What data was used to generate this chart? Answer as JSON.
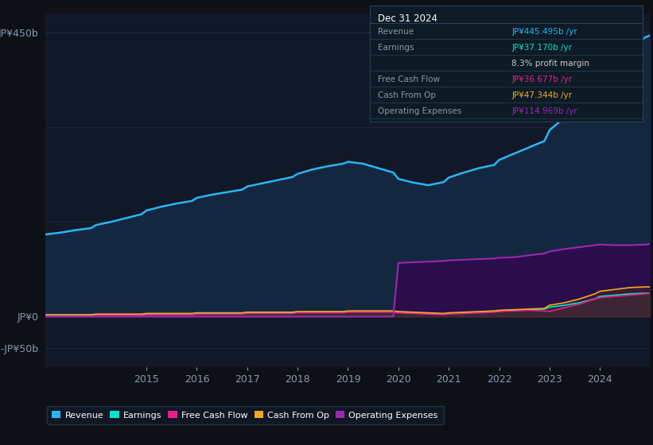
{
  "background_color": "#0d1117",
  "plot_bg_color": "#111827",
  "grid_color": "#1e2d3d",
  "years": [
    2013.0,
    2013.3,
    2013.6,
    2013.9,
    2014.0,
    2014.3,
    2014.6,
    2014.9,
    2015.0,
    2015.3,
    2015.6,
    2015.9,
    2016.0,
    2016.3,
    2016.6,
    2016.9,
    2017.0,
    2017.3,
    2017.6,
    2017.9,
    2018.0,
    2018.3,
    2018.6,
    2018.9,
    2019.0,
    2019.3,
    2019.6,
    2019.9,
    2020.0,
    2020.3,
    2020.6,
    2020.9,
    2021.0,
    2021.3,
    2021.6,
    2021.9,
    2022.0,
    2022.3,
    2022.6,
    2022.9,
    2023.0,
    2023.3,
    2023.6,
    2023.9,
    2024.0,
    2024.3,
    2024.6,
    2024.9,
    2024.99
  ],
  "revenue": [
    130,
    133,
    137,
    140,
    145,
    150,
    156,
    162,
    168,
    174,
    179,
    183,
    188,
    193,
    197,
    201,
    206,
    211,
    216,
    221,
    226,
    233,
    238,
    242,
    245,
    242,
    235,
    228,
    218,
    212,
    208,
    213,
    220,
    228,
    235,
    240,
    248,
    258,
    268,
    278,
    295,
    315,
    335,
    360,
    385,
    405,
    425,
    442,
    445
  ],
  "earnings": [
    2,
    2,
    2,
    2,
    3,
    3,
    3,
    3,
    4,
    4,
    4,
    4,
    5,
    5,
    5,
    5,
    6,
    6,
    6,
    6,
    7,
    7,
    7,
    7,
    8,
    8,
    8,
    8,
    7,
    6,
    5,
    4,
    5,
    6,
    7,
    8,
    9,
    10,
    11,
    12,
    15,
    18,
    22,
    28,
    32,
    34,
    36,
    37,
    37
  ],
  "free_cash_flow": [
    1,
    1,
    1,
    1,
    2,
    2,
    2,
    2,
    3,
    3,
    3,
    3,
    4,
    4,
    4,
    4,
    5,
    5,
    5,
    5,
    6,
    6,
    6,
    6,
    7,
    7,
    7,
    7,
    6,
    5,
    4,
    3,
    4,
    5,
    6,
    7,
    8,
    9,
    10,
    9,
    8,
    14,
    20,
    28,
    30,
    32,
    34,
    36,
    37
  ],
  "cash_from_op": [
    3,
    3,
    3,
    3,
    4,
    4,
    4,
    4,
    5,
    5,
    5,
    5,
    6,
    6,
    6,
    6,
    7,
    7,
    7,
    7,
    8,
    8,
    8,
    8,
    9,
    9,
    9,
    9,
    8,
    7,
    6,
    5,
    6,
    7,
    8,
    9,
    10,
    11,
    12,
    13,
    18,
    22,
    28,
    36,
    40,
    43,
    46,
    47,
    47
  ],
  "operating_expenses": [
    0,
    0,
    0,
    0,
    0,
    0,
    0,
    0,
    0,
    0,
    0,
    0,
    0,
    0,
    0,
    0,
    0,
    0,
    0,
    0,
    0,
    0,
    0,
    0,
    0,
    0,
    0,
    0,
    85,
    86,
    87,
    88,
    89,
    90,
    91,
    92,
    93,
    94,
    97,
    100,
    103,
    107,
    110,
    113,
    114,
    113,
    113,
    114,
    115
  ],
  "ylim_top": 480,
  "ylim_bottom": -80,
  "yticks": [
    -50,
    0,
    450
  ],
  "ytick_labels": [
    "-JP¥50b",
    "JP¥0",
    "JP¥450b"
  ],
  "xticks": [
    2015,
    2016,
    2017,
    2018,
    2019,
    2020,
    2021,
    2022,
    2023,
    2024
  ],
  "revenue_color": "#29b6f6",
  "earnings_color": "#00e5cc",
  "fcf_color": "#e91e8c",
  "cashop_color": "#f5a623",
  "opex_color": "#9c27b0",
  "revenue_fill": "#132840",
  "opex_fill": "#2a0d4a",
  "legend_items": [
    "Revenue",
    "Earnings",
    "Free Cash Flow",
    "Cash From Op",
    "Operating Expenses"
  ],
  "legend_colors": [
    "#29b6f6",
    "#00e5cc",
    "#e91e8c",
    "#f5a623",
    "#9c27b0"
  ],
  "info_box": {
    "title": "Dec 31 2024",
    "rows": [
      {
        "label": "Revenue",
        "value": "JP¥445.495b /yr",
        "value_color": "#29b6f6"
      },
      {
        "label": "Earnings",
        "value": "JP¥37.170b /yr",
        "value_color": "#00e5cc"
      },
      {
        "label": "",
        "value": "8.3% profit margin",
        "value_color": "#cccccc"
      },
      {
        "label": "Free Cash Flow",
        "value": "JP¥36.677b /yr",
        "value_color": "#e91e8c"
      },
      {
        "label": "Cash From Op",
        "value": "JP¥47.344b /yr",
        "value_color": "#f5a623"
      },
      {
        "label": "Operating Expenses",
        "value": "JP¥114.969b /yr",
        "value_color": "#9c27b0"
      }
    ]
  }
}
